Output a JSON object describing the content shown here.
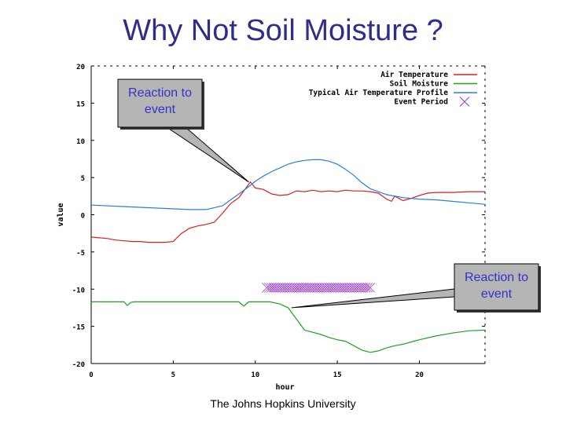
{
  "slide": {
    "title": "Why Not Soil Moisture ?",
    "footer": "The Johns Hopkins University"
  },
  "callouts": [
    {
      "line1": "Reaction to",
      "line2": "event",
      "target": {
        "x": 9.6,
        "y": 4.4
      }
    },
    {
      "line1": "Reaction to",
      "line2": "event",
      "target": {
        "x": 12.2,
        "y": -12.5
      }
    }
  ],
  "chart_data": {
    "type": "line",
    "xlabel": "hour",
    "ylabel": "value",
    "xlim": [
      0,
      24
    ],
    "ylim": [
      -20,
      20
    ],
    "xticks": [
      0,
      5,
      10,
      15,
      20
    ],
    "yticks": [
      -20,
      -15,
      -10,
      -5,
      0,
      5,
      10,
      15,
      20
    ],
    "legend_position": "top-right",
    "grid": false,
    "series": [
      {
        "name": "Air Temperature",
        "color": "#d62020",
        "x": [
          0,
          0.5,
          1,
          1.5,
          2,
          2.5,
          3,
          3.5,
          4,
          4.5,
          5,
          5.5,
          6,
          6.5,
          7,
          7.5,
          8,
          8.5,
          9,
          9.5,
          9.7,
          10,
          10.5,
          11,
          11.5,
          12,
          12.5,
          13,
          13.5,
          14,
          14.5,
          15,
          15.5,
          16,
          16.5,
          17,
          17.5,
          18,
          18.3,
          18.5,
          19,
          19.5,
          20,
          20.5,
          21,
          22,
          23,
          24
        ],
        "y": [
          -3.0,
          -3.1,
          -3.2,
          -3.4,
          -3.5,
          -3.6,
          -3.6,
          -3.7,
          -3.7,
          -3.7,
          -3.6,
          -2.5,
          -1.8,
          -1.5,
          -1.3,
          -1.0,
          0.2,
          1.5,
          2.3,
          3.8,
          4.4,
          3.6,
          3.4,
          2.8,
          2.6,
          2.7,
          3.2,
          3.1,
          3.3,
          3.1,
          3.2,
          3.1,
          3.3,
          3.2,
          3.2,
          3.1,
          2.9,
          2.1,
          1.8,
          2.5,
          1.9,
          2.2,
          2.6,
          2.9,
          3.0,
          3.0,
          3.1,
          3.1
        ]
      },
      {
        "name": "Soil Moisture",
        "color": "#20a020",
        "x": [
          0,
          2,
          2.2,
          2.4,
          2.6,
          5,
          7,
          9,
          9.3,
          9.6,
          10,
          10.5,
          10.9,
          11.5,
          12.0,
          12.5,
          13,
          13.5,
          14,
          14.5,
          15,
          15.5,
          16,
          16.5,
          17,
          17.5,
          18,
          18.5,
          19,
          19.5,
          20,
          21,
          22,
          23,
          24
        ],
        "y": [
          -11.7,
          -11.7,
          -12.2,
          -11.8,
          -11.7,
          -11.7,
          -11.7,
          -11.7,
          -12.3,
          -11.7,
          -11.7,
          -11.7,
          -11.7,
          -12.0,
          -12.5,
          -14.0,
          -15.5,
          -15.8,
          -16.1,
          -16.5,
          -16.8,
          -17.0,
          -17.6,
          -18.2,
          -18.5,
          -18.3,
          -17.9,
          -17.6,
          -17.4,
          -17.1,
          -16.8,
          -16.3,
          -15.9,
          -15.6,
          -15.5
        ]
      },
      {
        "name": "Typical Air Temperature Profile",
        "color": "#2a7ed8",
        "x": [
          0,
          2,
          4,
          6,
          7,
          8,
          8.5,
          9,
          9.5,
          10,
          10.5,
          11,
          11.5,
          12,
          12.5,
          13,
          13.5,
          14,
          14.5,
          15,
          15.5,
          16,
          16.5,
          17,
          17.5,
          18,
          19,
          20,
          21,
          22,
          23,
          24
        ],
        "y": [
          1.3,
          1.1,
          0.9,
          0.7,
          0.7,
          1.2,
          2.0,
          2.8,
          3.6,
          4.5,
          5.2,
          5.8,
          6.3,
          6.8,
          7.1,
          7.3,
          7.4,
          7.4,
          7.2,
          6.8,
          6.1,
          5.3,
          4.3,
          3.5,
          3.1,
          2.7,
          2.3,
          2.1,
          2.0,
          1.8,
          1.6,
          1.4
        ]
      },
      {
        "name": "Event Period",
        "color": "#9933cc",
        "marker": "x",
        "x_range": [
          10.7,
          17.0
        ],
        "y": -9.8
      }
    ]
  }
}
